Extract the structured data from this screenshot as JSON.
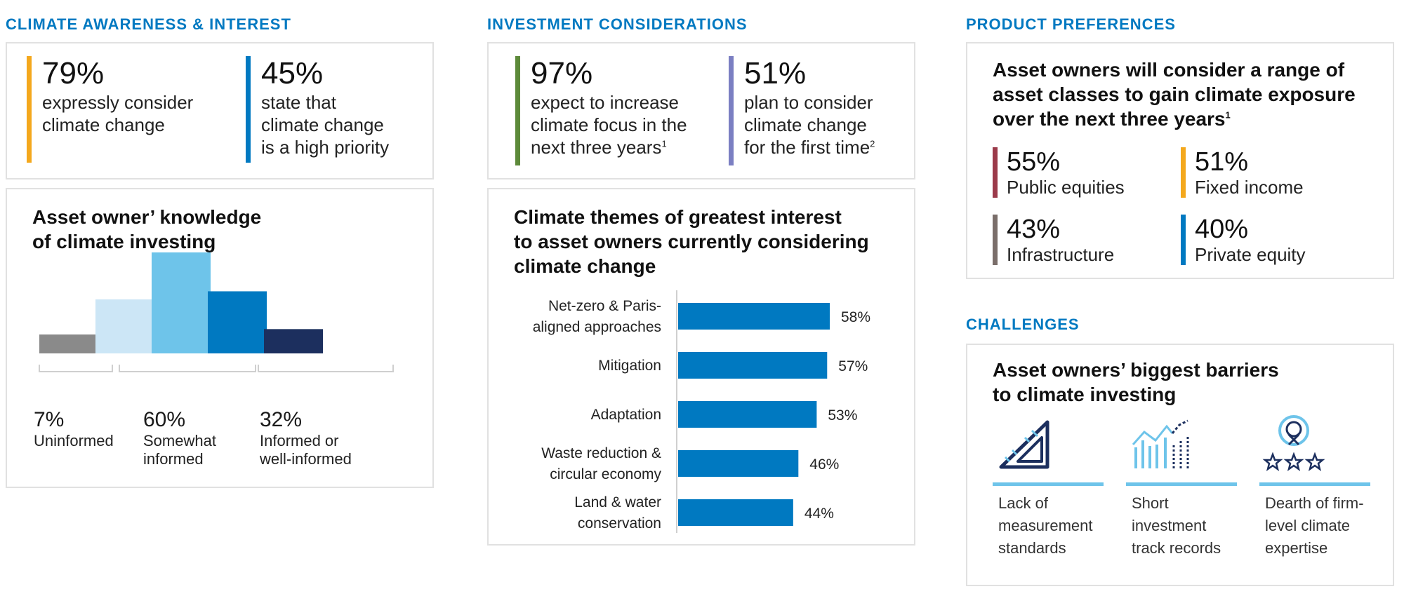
{
  "sections": {
    "awareness": "CLIMATE AWARENESS & INTEREST",
    "investment": "INVESTMENT CONSIDERATIONS",
    "product": "PRODUCT PREFERENCES",
    "challenges": "CHALLENGES"
  },
  "awareness_stats": [
    {
      "value": "79%",
      "line1": "expressly consider",
      "line2": "climate change",
      "line3": "",
      "color": "#f4a81d"
    },
    {
      "value": "45%",
      "line1": "state that",
      "line2": "climate change",
      "line3": "is a high priority",
      "color": "#0079c1"
    }
  ],
  "investment_stats": [
    {
      "value": "97%",
      "line1": "expect to increase",
      "line2": "climate focus in the",
      "line3": "next three years",
      "sup": "1",
      "color": "#5d8a3a"
    },
    {
      "value": "51%",
      "line1": "plan to consider",
      "line2": "climate change",
      "line3": "for the first time",
      "sup": "2",
      "color": "#7b7fc2"
    }
  ],
  "knowledge": {
    "title_line1": "Asset owner’ knowledge",
    "title_line2": "of climate investing",
    "groups": [
      {
        "pct": "7%",
        "label_line1": "Uninformed",
        "label_line2": ""
      },
      {
        "pct": "60%",
        "label_line1": "Somewhat",
        "label_line2": "informed"
      },
      {
        "pct": "32%",
        "label_line1": "Informed or",
        "label_line2": "well-informed"
      }
    ]
  },
  "themes": {
    "title_line1": "Climate themes of greatest interest",
    "title_line2": "to asset owners currently considering",
    "title_line3": "climate change"
  },
  "product": {
    "title_line1": "Asset owners will consider a range of",
    "title_line2": "asset classes to gain climate exposure",
    "title_line3": "over the next three years",
    "title_sup": "1",
    "items": [
      {
        "value": "55%",
        "label": "Public equities",
        "color": "#9b3a4a"
      },
      {
        "value": "51%",
        "label": "Fixed income",
        "color": "#f4a81d"
      },
      {
        "value": "43%",
        "label": "Infrastructure",
        "color": "#7a6e6a"
      },
      {
        "value": "40%",
        "label": "Private equity",
        "color": "#0079c1"
      }
    ]
  },
  "challenges": {
    "title_line1": "Asset owners’ biggest barriers",
    "title_line2": "to climate investing",
    "items": [
      {
        "icon": "ruler-triangle-icon",
        "line1": "Lack of",
        "line2": "measurement",
        "line3": "standards"
      },
      {
        "icon": "chart-trend-icon",
        "line1": "Short",
        "line2": "investment",
        "line3": "track records"
      },
      {
        "icon": "award-ribbon-icon",
        "line1": "Dearth of firm-",
        "line2": "level climate",
        "line3": "expertise"
      }
    ]
  },
  "chart_data": [
    {
      "type": "bar",
      "title": "Asset owner’ knowledge of climate investing",
      "categories": [
        "Uninformed",
        "Somewhat informed (a)",
        "Somewhat informed (b)",
        "Informed or well-informed (a)",
        "Informed or well-informed (b)"
      ],
      "values": [
        7,
        20,
        40,
        23,
        9
      ],
      "colors": [
        "#8a8a8a",
        "#cce6f6",
        "#6ec4ea",
        "#0079c1",
        "#1c2f5e"
      ],
      "group_totals": {
        "Uninformed": 7,
        "Somewhat informed": 60,
        "Informed or well-informed": 32
      }
    },
    {
      "type": "bar",
      "orientation": "horizontal",
      "title": "Climate themes of greatest interest to asset owners currently considering climate change",
      "categories": [
        [
          "Net-zero & Paris-",
          "aligned approaches"
        ],
        [
          "Mitigation"
        ],
        [
          "Adaptation"
        ],
        [
          "Waste reduction &",
          "circular economy"
        ],
        [
          "Land & water",
          "conservation"
        ]
      ],
      "values": [
        58,
        57,
        53,
        46,
        44
      ],
      "value_labels": [
        "58%",
        "57%",
        "53%",
        "46%",
        "44%"
      ],
      "color": "#0079c1",
      "xlim": [
        0,
        58
      ]
    }
  ]
}
